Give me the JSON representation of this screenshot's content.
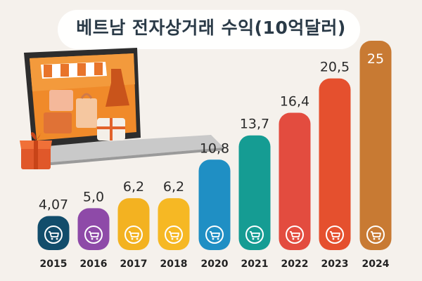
{
  "title": "베트남 전자상거래 수익(10억달러)",
  "chart_data": {
    "type": "bar",
    "title": "베트남 전자상거래 수익(10억달러)",
    "xlabel": "",
    "ylabel": "",
    "categories": [
      "2015",
      "2016",
      "2017",
      "2018",
      "2020",
      "2021",
      "2022",
      "2023",
      "2024"
    ],
    "values": [
      4.07,
      5.0,
      6.2,
      6.2,
      10.8,
      13.7,
      16.4,
      20.5,
      25
    ],
    "value_labels": [
      "4,07",
      "5,0",
      "6,2",
      "6,2",
      "10,8",
      "13,7",
      "16,4",
      "20,5",
      "25"
    ],
    "colors": [
      "#124d6b",
      "#8e4aa8",
      "#f3b221",
      "#f6b824",
      "#1f8fc4",
      "#159c93",
      "#e34c3f",
      "#e5502e",
      "#c87a33"
    ],
    "ylim": [
      0,
      25
    ],
    "grid": false,
    "legend": "none"
  },
  "icons": {
    "bar_icon": "shopping-cart-icon",
    "illustration": "laptop-online-store-illustration"
  }
}
